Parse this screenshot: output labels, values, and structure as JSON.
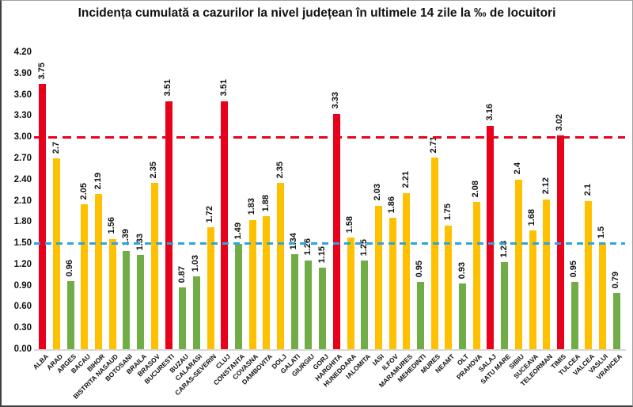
{
  "chart_data": {
    "type": "bar",
    "title": "Incidența cumulată a cazurilor la nivel județean în ultimele 14 zile la ‰ de locuitori",
    "xlabel": "",
    "ylabel": "",
    "ylim": [
      0,
      4.2
    ],
    "ytick_step": 0.3,
    "ytick_labels": [
      "0.00",
      "0.30",
      "0.60",
      "0.90",
      "1.20",
      "1.50",
      "1.80",
      "2.10",
      "2.40",
      "2.70",
      "3.00",
      "3.30",
      "3.60",
      "3.90",
      "4.20"
    ],
    "grid": false,
    "legend": "none",
    "categories": [
      "ALBA",
      "ARAD",
      "ARGES",
      "BACAU",
      "BIHOR",
      "BISTRITA NASAUD",
      "BOTOSANI",
      "BRAILA",
      "BRASOV",
      "BUCURESTI",
      "BUZAU",
      "CALARASI",
      "CARAS-SEVERIN",
      "CLUJ",
      "CONSTANTA",
      "COVASNA",
      "DAMBOVITA",
      "DOLJ",
      "GALATI",
      "GIURGIU",
      "GORJ",
      "HARGHITA",
      "HUNEDOARA",
      "IALOMITA",
      "IASI",
      "ILFOV",
      "MARAMURES",
      "MEHEDINTI",
      "MURES",
      "NEAMT",
      "OLT",
      "PRAHOVA",
      "SALAJ",
      "SATU MARE",
      "SIBIU",
      "SUCEAVA",
      "TELEORMAN",
      "TIMIS",
      "TULCEA",
      "VALCEA",
      "VASLUI",
      "VRANCEA"
    ],
    "values": [
      3.75,
      2.7,
      0.96,
      2.05,
      2.19,
      1.56,
      1.39,
      1.33,
      2.35,
      3.51,
      0.87,
      1.03,
      1.72,
      3.51,
      1.49,
      1.83,
      1.88,
      2.35,
      1.34,
      1.26,
      1.15,
      3.33,
      1.58,
      1.25,
      2.03,
      1.86,
      2.21,
      0.95,
      2.71,
      1.75,
      0.93,
      2.08,
      3.16,
      1.23,
      2.4,
      1.68,
      2.12,
      3.02,
      0.95,
      2.1,
      1.5,
      0.79
    ],
    "value_labels": [
      "3.75",
      "2.7",
      "0.96",
      "2.05",
      "2.19",
      "1.56",
      "1.39",
      "1.33",
      "2.35",
      "3.51",
      "0.87",
      "1.03",
      "1.72",
      "3.51",
      "1.49",
      "1.83",
      "1.88",
      "2.35",
      "1.34",
      "1.26",
      "1.15",
      "3.33",
      "1.58",
      "1.25",
      "2.03",
      "1.86",
      "2.21",
      "0.95",
      "2.71",
      "1.75",
      "0.93",
      "2.08",
      "3.16",
      "1.23",
      "2.4",
      "1.68",
      "2.12",
      "3.02",
      "0.95",
      "2.1",
      "1.5",
      "0.79"
    ],
    "bar_colors": [
      "red",
      "yellow",
      "green",
      "yellow",
      "yellow",
      "yellow",
      "green",
      "green",
      "yellow",
      "red",
      "green",
      "green",
      "yellow",
      "red",
      "green",
      "yellow",
      "yellow",
      "yellow",
      "green",
      "green",
      "green",
      "red",
      "yellow",
      "green",
      "yellow",
      "yellow",
      "yellow",
      "green",
      "yellow",
      "yellow",
      "green",
      "yellow",
      "red",
      "green",
      "yellow",
      "yellow",
      "yellow",
      "red",
      "green",
      "yellow",
      "yellow",
      "green"
    ],
    "palette": {
      "red": "#e9001a",
      "yellow": "#ffc000",
      "green": "#70ad47"
    },
    "reference_lines": [
      {
        "name": "red-threshold",
        "value": 3.0,
        "color": "#e9001a",
        "style": "dashed"
      },
      {
        "name": "blue-threshold",
        "value": 1.5,
        "color": "#2ba6de",
        "style": "dashed"
      }
    ],
    "axis_line_color": "#d9d9d9"
  }
}
